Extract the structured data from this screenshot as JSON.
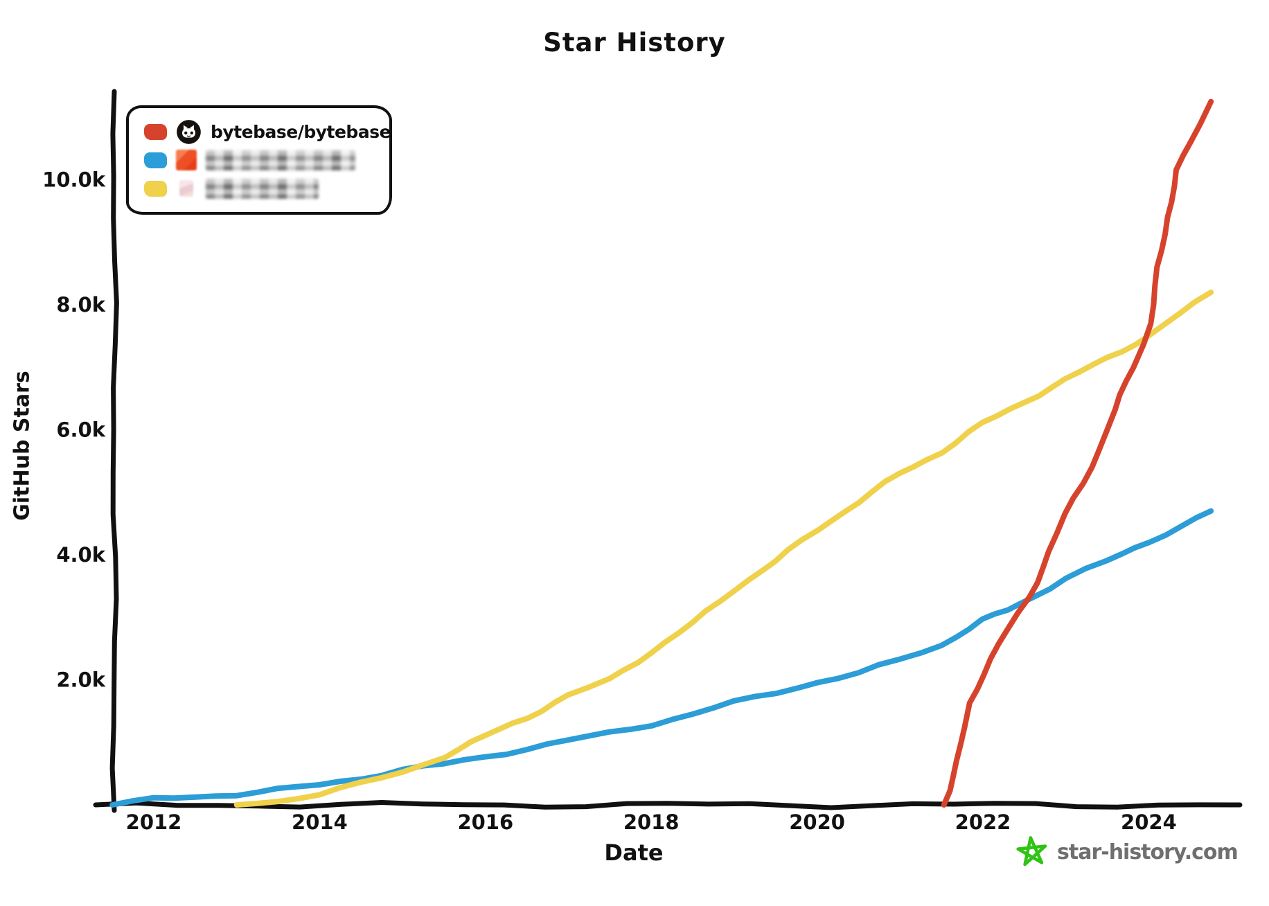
{
  "title": "Star History",
  "y_axis": {
    "label": "GitHub Stars"
  },
  "x_axis": {
    "label": "Date"
  },
  "legend": {
    "entries": [
      {
        "label": "bytebase/bytebase",
        "color": "#d6432c",
        "icon": "github-octocat",
        "redacted": false
      },
      {
        "label": "",
        "color": "#2c9dd6",
        "icon": "blurred-orange-logo",
        "redacted": true
      },
      {
        "label": "",
        "color": "#efd14b",
        "icon": "blurred-pink-logo",
        "redacted": true
      }
    ]
  },
  "watermark": {
    "text": "star-history.com",
    "icon": "green-star",
    "star_color": "#2fc314",
    "text_color": "#6f6f6f"
  },
  "chart_data": {
    "type": "line",
    "title": "Star History",
    "xlabel": "Date",
    "ylabel": "GitHub Stars",
    "x_range": [
      2011.4,
      2024.9
    ],
    "y_range": [
      0,
      11500
    ],
    "grid": false,
    "legend_position": "top-left",
    "x_ticks": [
      {
        "value": 2012,
        "label": "2012"
      },
      {
        "value": 2014,
        "label": "2014"
      },
      {
        "value": 2016,
        "label": "2016"
      },
      {
        "value": 2018,
        "label": "2018"
      },
      {
        "value": 2020,
        "label": "2020"
      },
      {
        "value": 2022,
        "label": "2022"
      },
      {
        "value": 2024,
        "label": "2024"
      }
    ],
    "y_ticks": [
      {
        "value": 2000,
        "label": "2.0k"
      },
      {
        "value": 4000,
        "label": "4.0k"
      },
      {
        "value": 6000,
        "label": "6.0k"
      },
      {
        "value": 8000,
        "label": "8.0k"
      },
      {
        "value": 10000,
        "label": "10.0k"
      }
    ],
    "series": [
      {
        "name": "redacted-blue-repo",
        "color": "#2c9dd6",
        "points": [
          [
            2011.5,
            0
          ],
          [
            2012,
            90
          ],
          [
            2012.5,
            130
          ],
          [
            2013,
            170
          ],
          [
            2013.5,
            240
          ],
          [
            2014,
            320
          ],
          [
            2014.5,
            430
          ],
          [
            2015,
            560
          ],
          [
            2015.5,
            650
          ],
          [
            2016,
            770
          ],
          [
            2016.5,
            900
          ],
          [
            2017,
            1030
          ],
          [
            2017.5,
            1150
          ],
          [
            2018,
            1290
          ],
          [
            2018.5,
            1450
          ],
          [
            2019,
            1640
          ],
          [
            2019.5,
            1800
          ],
          [
            2020,
            1960
          ],
          [
            2020.5,
            2100
          ],
          [
            2021,
            2330
          ],
          [
            2021.5,
            2560
          ],
          [
            2022,
            2950
          ],
          [
            2022.3,
            3120
          ],
          [
            2022.6,
            3330
          ],
          [
            2023,
            3620
          ],
          [
            2023.5,
            3900
          ],
          [
            2024,
            4220
          ],
          [
            2024.4,
            4450
          ],
          [
            2024.75,
            4700
          ]
        ]
      },
      {
        "name": "redacted-yellow-repo",
        "color": "#efd14b",
        "points": [
          [
            2013,
            0
          ],
          [
            2013.5,
            60
          ],
          [
            2014,
            180
          ],
          [
            2014.5,
            340
          ],
          [
            2015,
            520
          ],
          [
            2015.5,
            780
          ],
          [
            2016,
            1100
          ],
          [
            2016.5,
            1400
          ],
          [
            2017,
            1750
          ],
          [
            2017.5,
            2000
          ],
          [
            2018,
            2450
          ],
          [
            2018.5,
            2900
          ],
          [
            2019,
            3450
          ],
          [
            2019.5,
            3900
          ],
          [
            2020,
            4400
          ],
          [
            2020.5,
            4850
          ],
          [
            2021,
            5300
          ],
          [
            2021.5,
            5650
          ],
          [
            2022,
            6100
          ],
          [
            2022.5,
            6450
          ],
          [
            2023,
            6800
          ],
          [
            2023.5,
            7150
          ],
          [
            2024,
            7500
          ],
          [
            2024.75,
            8200
          ]
        ]
      },
      {
        "name": "bytebase/bytebase",
        "color": "#d6432c",
        "points": [
          [
            2021.53,
            0
          ],
          [
            2021.7,
            700
          ],
          [
            2021.78,
            1240
          ],
          [
            2021.84,
            1630
          ],
          [
            2022,
            2100
          ],
          [
            2022.3,
            2800
          ],
          [
            2022.56,
            3330
          ],
          [
            2022.8,
            4050
          ],
          [
            2023,
            4650
          ],
          [
            2023.2,
            5150
          ],
          [
            2023.4,
            5680
          ],
          [
            2023.6,
            6320
          ],
          [
            2023.8,
            7000
          ],
          [
            2023.93,
            7380
          ],
          [
            2024.02,
            7700
          ],
          [
            2024.12,
            8600
          ],
          [
            2024.22,
            9400
          ],
          [
            2024.35,
            10150
          ],
          [
            2024.5,
            10600
          ],
          [
            2024.62,
            10900
          ],
          [
            2024.75,
            11250
          ]
        ]
      }
    ]
  }
}
